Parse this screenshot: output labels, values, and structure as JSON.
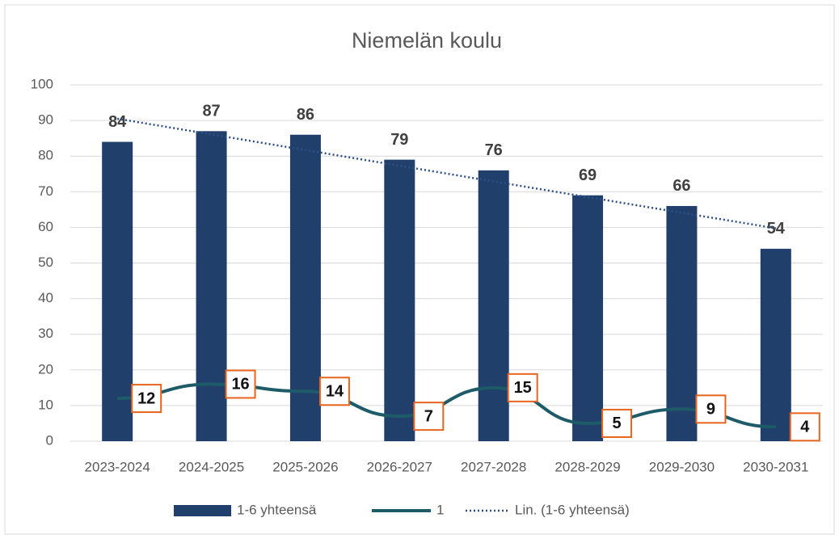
{
  "chart_data": {
    "type": "bar",
    "title": "Niemelän koulu",
    "categories": [
      "2023-2024",
      "2024-2025",
      "2025-2026",
      "2026-2027",
      "2027-2028",
      "2028-2029",
      "2029-2030",
      "2030-2031"
    ],
    "series": [
      {
        "name": "1-6 yhteensä",
        "type": "bar",
        "color": "#203f6b",
        "values": [
          84,
          87,
          86,
          79,
          76,
          69,
          66,
          54
        ]
      },
      {
        "name": "1",
        "type": "line",
        "color": "#1d5b68",
        "values": [
          12,
          16,
          14,
          7,
          15,
          5,
          9,
          4
        ]
      },
      {
        "name": "Lin. (1-6 yhteensä)",
        "type": "trendline",
        "color": "#2b4f86",
        "values": [
          90.5,
          86.1,
          81.7,
          77.3,
          72.9,
          68.5,
          64.1,
          59.75
        ]
      }
    ],
    "ylim": [
      0,
      100
    ],
    "yticks": [
      0,
      10,
      20,
      30,
      40,
      50,
      60,
      70,
      80,
      90,
      100
    ],
    "grid": true,
    "legend": "bottom"
  }
}
